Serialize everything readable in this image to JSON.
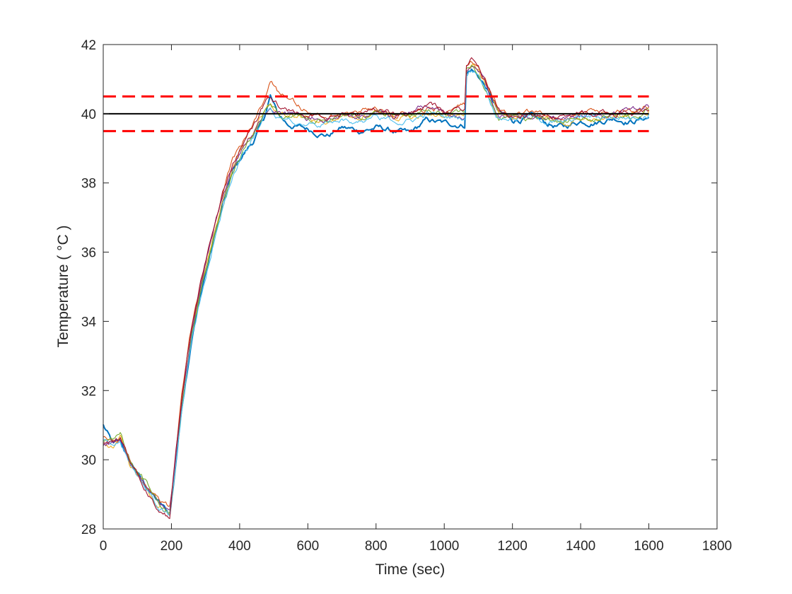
{
  "chart_data": {
    "type": "line",
    "title": "",
    "xlabel": "Time (sec)",
    "ylabel": "Temperature ( °C )",
    "xlim": [
      0,
      1800
    ],
    "ylim": [
      28,
      42
    ],
    "x_ticks": [
      0,
      200,
      400,
      600,
      800,
      1000,
      1200,
      1400,
      1600,
      1800
    ],
    "y_ticks": [
      28,
      30,
      32,
      34,
      36,
      38,
      40,
      42
    ],
    "grid": false,
    "legend": "none",
    "reference_lines": [
      {
        "y": 40,
        "x_range": [
          0,
          1600
        ],
        "style": "solid",
        "color": "#000000"
      },
      {
        "y": 40.5,
        "x_range": [
          0,
          1600
        ],
        "style": "dashed",
        "color": "#ff0000"
      },
      {
        "y": 39.5,
        "x_range": [
          0,
          1600
        ],
        "style": "dashed",
        "color": "#ff0000"
      }
    ],
    "series": [
      {
        "color": "#0072bd",
        "x": [
          0,
          30,
          50,
          80,
          120,
          160,
          195,
          205,
          230,
          260,
          290,
          320,
          350,
          380,
          410,
          440,
          470,
          490,
          510,
          540,
          580,
          620,
          660,
          700,
          750,
          800,
          850,
          900,
          950,
          1000,
          1060,
          1065,
          1080,
          1100,
          1120,
          1140,
          1160,
          1200,
          1250,
          1300,
          1350,
          1400,
          1450,
          1500,
          1550,
          1600
        ],
        "y": [
          31.0,
          30.4,
          30.5,
          29.9,
          29.3,
          28.8,
          28.4,
          29.2,
          31.5,
          33.6,
          35.0,
          36.2,
          37.4,
          38.3,
          38.8,
          39.2,
          39.8,
          40.5,
          40.0,
          39.7,
          39.6,
          39.5,
          39.4,
          39.6,
          39.5,
          39.6,
          39.5,
          39.4,
          39.8,
          39.7,
          39.7,
          41.2,
          41.3,
          41.1,
          40.8,
          40.4,
          40.0,
          39.8,
          39.9,
          39.7,
          39.6,
          39.8,
          39.8,
          39.9,
          39.8,
          39.9
        ]
      },
      {
        "color": "#d95319",
        "x": [
          0,
          30,
          50,
          80,
          120,
          160,
          195,
          205,
          230,
          260,
          290,
          320,
          350,
          380,
          410,
          440,
          470,
          490,
          510,
          540,
          580,
          620,
          660,
          700,
          750,
          800,
          850,
          900,
          950,
          1000,
          1060,
          1065,
          1080,
          1100,
          1120,
          1140,
          1160,
          1200,
          1250,
          1300,
          1350,
          1400,
          1450,
          1500,
          1550,
          1600
        ],
        "y": [
          30.6,
          30.5,
          30.6,
          30.0,
          29.4,
          28.9,
          28.6,
          29.4,
          31.8,
          33.9,
          35.3,
          36.6,
          37.7,
          38.6,
          39.2,
          39.7,
          40.4,
          41.0,
          40.7,
          40.6,
          40.2,
          40.0,
          39.9,
          40.1,
          40.0,
          40.2,
          40.0,
          40.1,
          40.2,
          40.1,
          40.2,
          41.3,
          41.5,
          41.4,
          41.0,
          40.5,
          40.1,
          40.0,
          40.0,
          39.9,
          39.9,
          40.0,
          40.0,
          40.0,
          40.0,
          40.2
        ]
      },
      {
        "color": "#edb120",
        "x": [
          0,
          30,
          50,
          80,
          120,
          160,
          195,
          205,
          230,
          260,
          290,
          320,
          350,
          380,
          410,
          440,
          470,
          490,
          510,
          540,
          580,
          620,
          660,
          700,
          750,
          800,
          850,
          900,
          950,
          1000,
          1060,
          1065,
          1080,
          1100,
          1120,
          1140,
          1160,
          1200,
          1250,
          1300,
          1350,
          1400,
          1450,
          1500,
          1550,
          1600
        ],
        "y": [
          30.5,
          30.4,
          30.7,
          29.8,
          29.2,
          28.7,
          28.4,
          29.3,
          31.6,
          33.7,
          35.1,
          36.4,
          37.5,
          38.4,
          39.0,
          39.4,
          40.0,
          40.3,
          40.1,
          40.0,
          39.9,
          39.8,
          39.8,
          40.0,
          39.9,
          40.0,
          39.9,
          39.9,
          40.1,
          40.0,
          40.0,
          41.2,
          41.4,
          41.3,
          40.9,
          40.5,
          40.0,
          39.9,
          39.9,
          39.8,
          39.8,
          39.9,
          39.9,
          40.0,
          39.9,
          40.1
        ]
      },
      {
        "color": "#7e2f8e",
        "x": [
          0,
          30,
          50,
          80,
          120,
          160,
          195,
          205,
          230,
          260,
          290,
          320,
          350,
          380,
          410,
          440,
          470,
          490,
          510,
          540,
          580,
          620,
          660,
          700,
          750,
          800,
          850,
          900,
          950,
          1000,
          1060,
          1065,
          1080,
          1100,
          1120,
          1140,
          1160,
          1200,
          1250,
          1300,
          1350,
          1400,
          1450,
          1500,
          1550,
          1600
        ],
        "y": [
          30.4,
          30.5,
          30.6,
          29.9,
          29.3,
          28.8,
          28.5,
          29.3,
          31.7,
          33.8,
          35.2,
          36.5,
          37.6,
          38.5,
          39.1,
          39.5,
          40.1,
          40.4,
          40.2,
          40.0,
          40.0,
          39.9,
          39.8,
          40.0,
          40.0,
          40.1,
          39.9,
          40.0,
          40.2,
          40.0,
          40.0,
          41.3,
          41.4,
          41.2,
          40.9,
          40.4,
          40.0,
          40.0,
          39.9,
          39.9,
          39.8,
          40.0,
          40.0,
          40.1,
          40.0,
          40.2
        ]
      },
      {
        "color": "#77ac30",
        "x": [
          0,
          30,
          50,
          80,
          120,
          160,
          195,
          205,
          230,
          260,
          290,
          320,
          350,
          380,
          410,
          440,
          470,
          490,
          510,
          540,
          580,
          620,
          660,
          700,
          750,
          800,
          850,
          900,
          950,
          1000,
          1060,
          1065,
          1080,
          1100,
          1120,
          1140,
          1160,
          1200,
          1250,
          1300,
          1350,
          1400,
          1450,
          1500,
          1550,
          1600
        ],
        "y": [
          30.5,
          30.6,
          30.8,
          29.9,
          29.4,
          28.8,
          28.5,
          29.2,
          31.5,
          33.6,
          35.0,
          36.3,
          37.4,
          38.3,
          38.9,
          39.4,
          40.0,
          40.3,
          40.1,
          39.9,
          39.9,
          39.8,
          39.8,
          39.9,
          39.9,
          40.0,
          39.9,
          39.9,
          40.1,
          40.0,
          40.0,
          41.2,
          41.4,
          41.2,
          40.8,
          40.4,
          40.0,
          39.9,
          39.9,
          39.8,
          39.8,
          39.9,
          39.9,
          40.0,
          39.9,
          40.1
        ]
      },
      {
        "color": "#4dbeee",
        "x": [
          0,
          30,
          50,
          80,
          120,
          160,
          195,
          205,
          230,
          260,
          290,
          320,
          350,
          380,
          410,
          440,
          470,
          490,
          510,
          540,
          580,
          620,
          660,
          700,
          750,
          800,
          850,
          900,
          950,
          1000,
          1060,
          1065,
          1080,
          1100,
          1120,
          1140,
          1160,
          1200,
          1250,
          1300,
          1350,
          1400,
          1450,
          1500,
          1550,
          1600
        ],
        "y": [
          30.6,
          30.4,
          30.6,
          29.8,
          29.3,
          28.7,
          28.4,
          29.2,
          31.4,
          33.5,
          34.9,
          36.2,
          37.3,
          38.2,
          38.8,
          39.3,
          39.9,
          40.2,
          40.0,
          39.9,
          39.8,
          39.7,
          39.7,
          39.9,
          39.8,
          39.9,
          39.8,
          39.8,
          40.0,
          39.9,
          39.9,
          41.1,
          41.3,
          41.2,
          40.8,
          40.3,
          39.9,
          39.9,
          39.9,
          39.8,
          39.7,
          39.9,
          39.9,
          39.9,
          39.9,
          40.0
        ]
      },
      {
        "color": "#a2142f",
        "x": [
          0,
          30,
          50,
          80,
          120,
          160,
          195,
          205,
          230,
          260,
          290,
          320,
          350,
          380,
          410,
          440,
          470,
          490,
          510,
          540,
          580,
          620,
          660,
          700,
          750,
          800,
          850,
          900,
          950,
          1000,
          1060,
          1065,
          1080,
          1100,
          1120,
          1140,
          1160,
          1200,
          1250,
          1300,
          1350,
          1400,
          1450,
          1500,
          1550,
          1600
        ],
        "y": [
          30.5,
          30.5,
          30.6,
          29.9,
          29.2,
          28.6,
          28.3,
          29.4,
          31.8,
          33.9,
          35.3,
          36.6,
          37.7,
          38.6,
          39.2,
          39.6,
          40.2,
          40.5,
          40.3,
          40.1,
          40.0,
          39.9,
          39.9,
          40.0,
          40.0,
          40.1,
          40.0,
          40.0,
          40.2,
          40.1,
          40.1,
          41.3,
          41.5,
          41.3,
          40.9,
          40.5,
          40.1,
          40.0,
          40.0,
          39.9,
          39.9,
          40.0,
          40.0,
          40.0,
          40.0,
          40.1
        ]
      }
    ]
  }
}
